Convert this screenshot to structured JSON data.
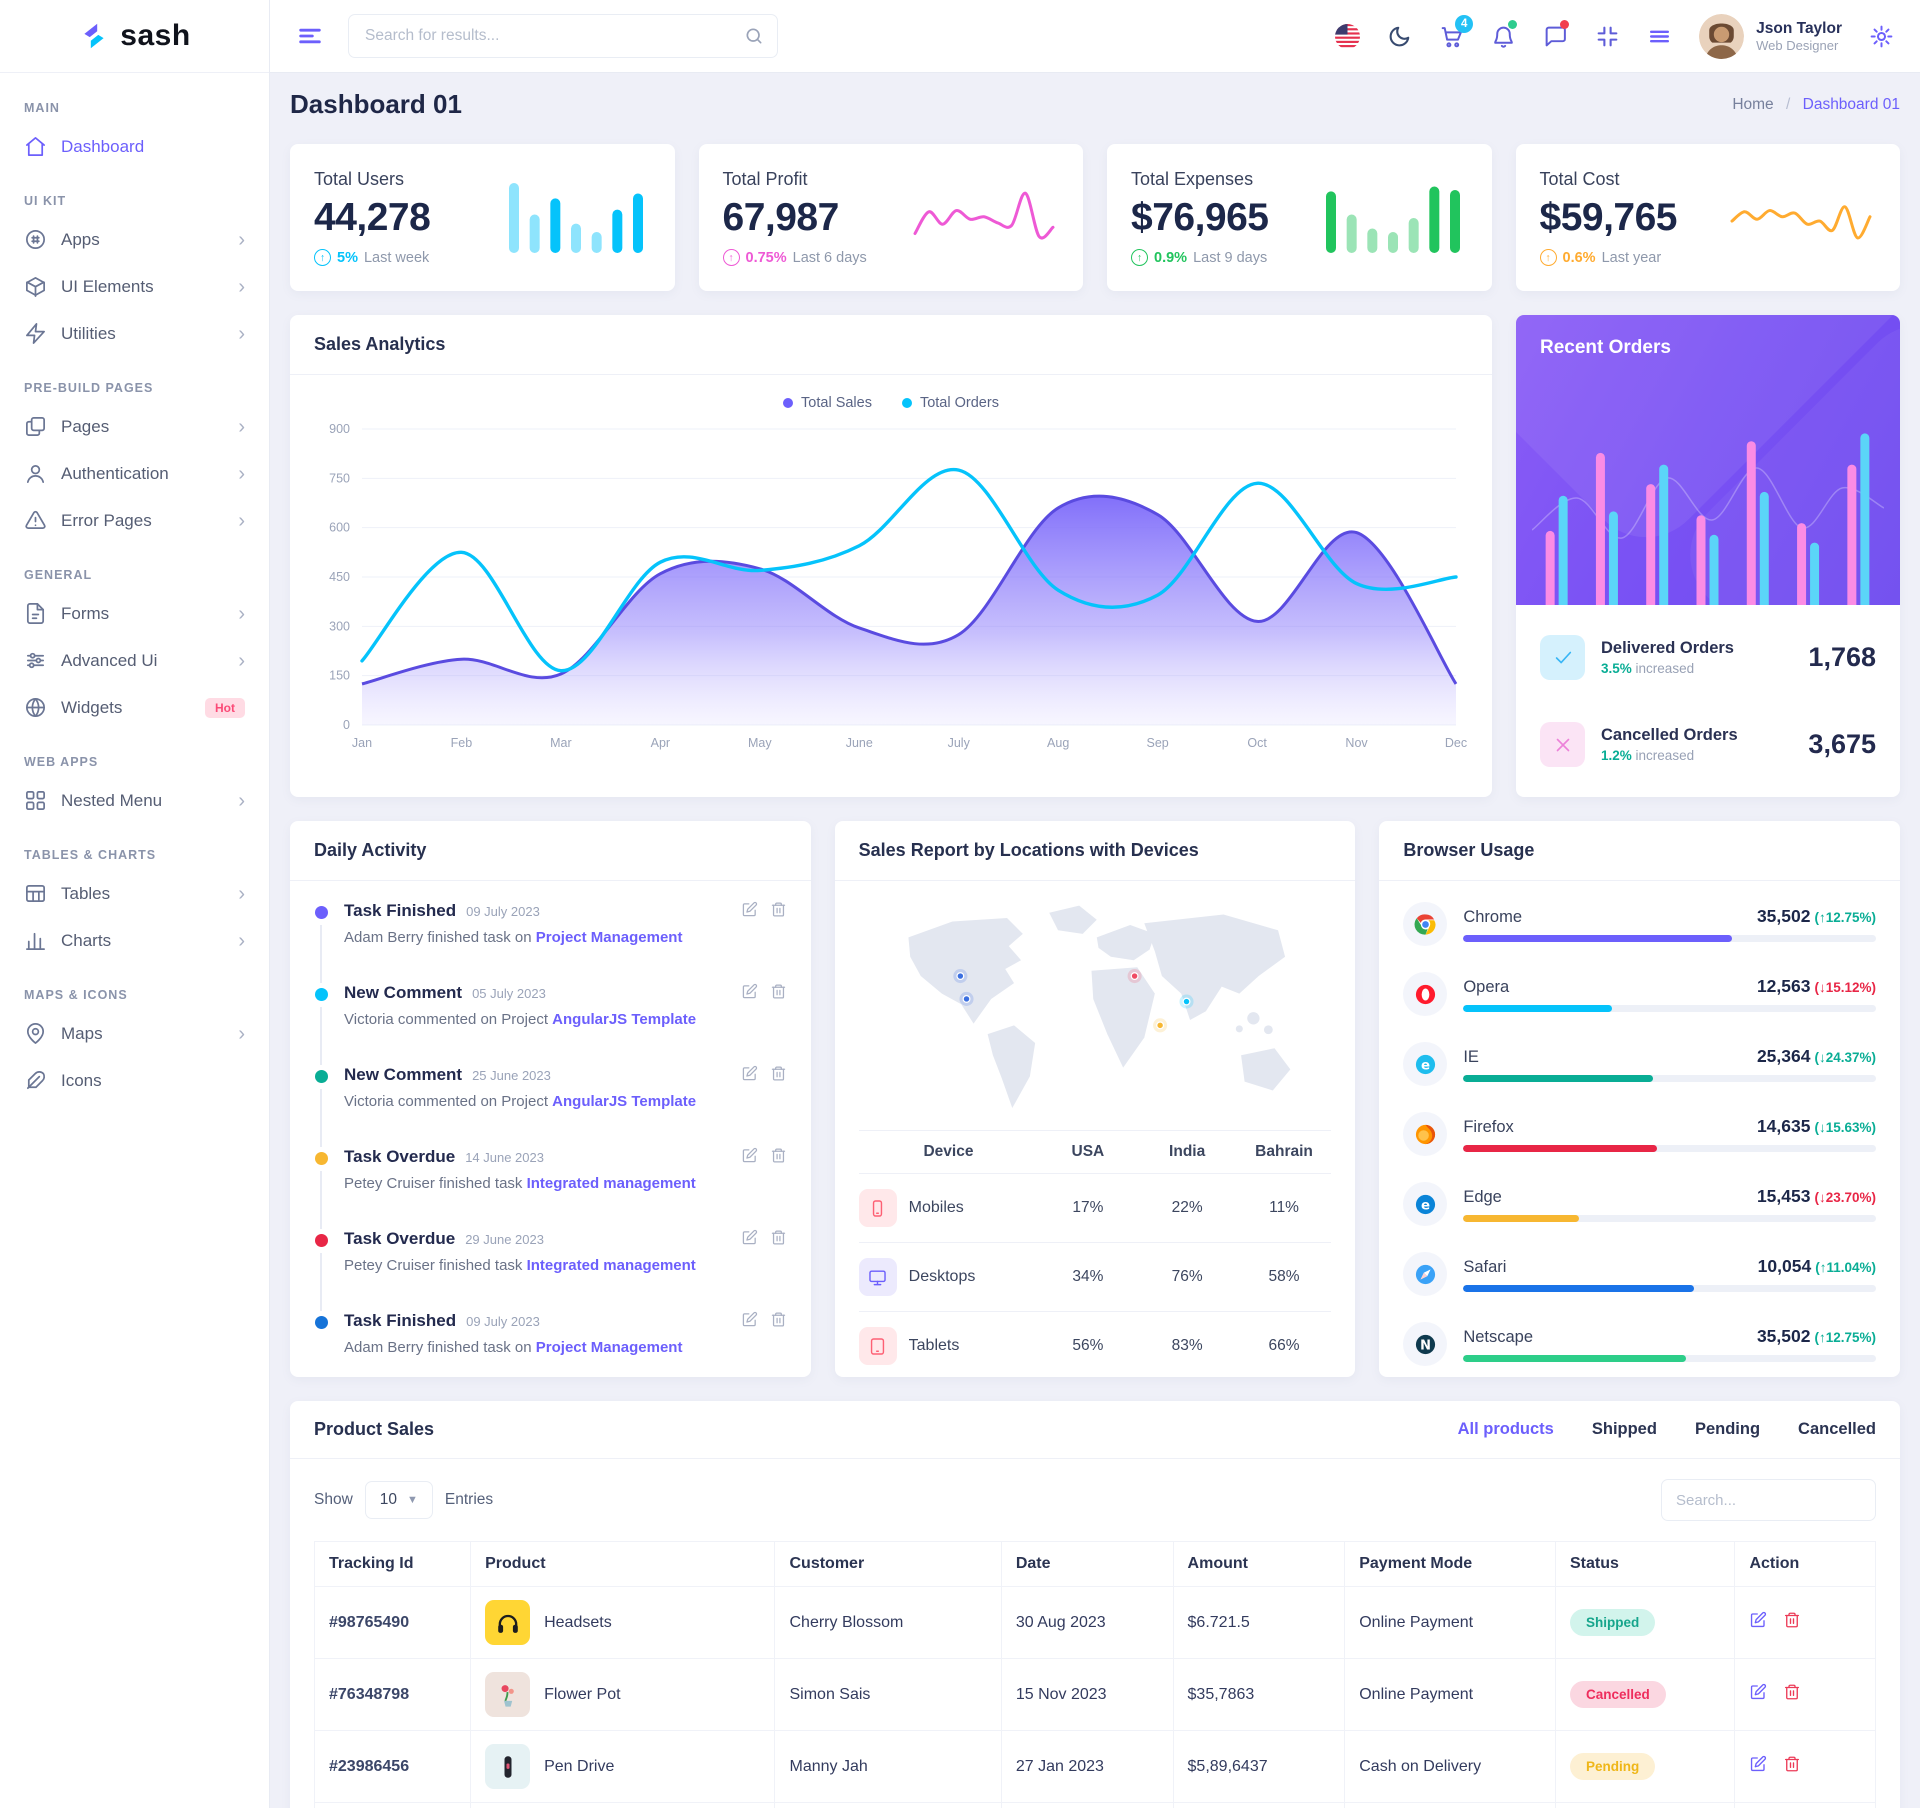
{
  "brand": {
    "name": "sash"
  },
  "header": {
    "search_placeholder": "Search for results...",
    "cart_badge": "4",
    "user": {
      "name": "Json Taylor",
      "role": "Web Designer"
    }
  },
  "sidebar": {
    "sections": [
      {
        "heading": "MAIN",
        "items": [
          {
            "label": "Dashboard",
            "icon": "home",
            "active": true
          }
        ]
      },
      {
        "heading": "UI KIT",
        "items": [
          {
            "label": "Apps",
            "icon": "apps",
            "chevron": true
          },
          {
            "label": "UI Elements",
            "icon": "box",
            "chevron": true
          },
          {
            "label": "Utilities",
            "icon": "zap",
            "chevron": true
          }
        ]
      },
      {
        "heading": "PRE-BUILD PAGES",
        "items": [
          {
            "label": "Pages",
            "icon": "pages",
            "chevron": true
          },
          {
            "label": "Authentication",
            "icon": "user",
            "chevron": true
          },
          {
            "label": "Error Pages",
            "icon": "alert",
            "chevron": true
          }
        ]
      },
      {
        "heading": "GENERAL",
        "items": [
          {
            "label": "Forms",
            "icon": "form",
            "chevron": true
          },
          {
            "label": "Advanced Ui",
            "icon": "sliders",
            "chevron": true
          },
          {
            "label": "Widgets",
            "icon": "globe",
            "badge": "Hot"
          }
        ]
      },
      {
        "heading": "WEB APPS",
        "items": [
          {
            "label": "Nested Menu",
            "icon": "grid",
            "chevron": true
          }
        ]
      },
      {
        "heading": "TABLES & CHARTS",
        "items": [
          {
            "label": "Tables",
            "icon": "table",
            "chevron": true
          },
          {
            "label": "Charts",
            "icon": "chart",
            "chevron": true
          }
        ]
      },
      {
        "heading": "MAPS & ICONS",
        "items": [
          {
            "label": "Maps",
            "icon": "map-pin",
            "chevron": true
          },
          {
            "label": "Icons",
            "icon": "feather"
          }
        ]
      }
    ]
  },
  "page": {
    "title": "Dashboard 01",
    "breadcrumb": [
      "Home",
      "Dashboard 01"
    ],
    "separator": "/"
  },
  "stats": [
    {
      "label": "Total Users",
      "value": "44,278",
      "delta": "5%",
      "period": "Last week",
      "color": "#05c3fb",
      "spark": {
        "type": "bar",
        "values": [
          100,
          55,
          78,
          42,
          30,
          62,
          85
        ],
        "emphasis": [
          0,
          0,
          1,
          0,
          0,
          1,
          1
        ]
      }
    },
    {
      "label": "Total Profit",
      "value": "67,987",
      "delta": "0.75%",
      "period": "Last 6 days",
      "color": "#ee59d5",
      "spark": {
        "type": "line",
        "values": [
          25,
          60,
          40,
          62,
          48,
          52,
          42,
          38,
          90,
          20,
          35
        ]
      }
    },
    {
      "label": "Total Expenses",
      "value": "$76,965",
      "delta": "0.9%",
      "period": "Last 9 days",
      "color": "#21c45d",
      "spark": {
        "type": "bar",
        "values": [
          88,
          55,
          35,
          30,
          50,
          95,
          90
        ],
        "emphasis": [
          1,
          0,
          0,
          0,
          0,
          1,
          1
        ]
      }
    },
    {
      "label": "Total Cost",
      "value": "$59,765",
      "delta": "0.6%",
      "period": "Last year",
      "color": "#ffab30",
      "spark": {
        "type": "line",
        "values": [
          45,
          60,
          48,
          62,
          52,
          58,
          40,
          45,
          30,
          68,
          18,
          52
        ]
      }
    }
  ],
  "chart_data": [
    {
      "id": "sales-analytics",
      "type": "area",
      "title": "Sales Analytics",
      "x": [
        "Jan",
        "Feb",
        "Mar",
        "Apr",
        "May",
        "June",
        "July",
        "Aug",
        "Sep",
        "Oct",
        "Nov",
        "Dec"
      ],
      "series": [
        {
          "name": "Total Sales",
          "type": "area",
          "color": "#6c5ffc",
          "values": [
            125,
            200,
            155,
            460,
            475,
            295,
            275,
            660,
            640,
            315,
            585,
            125
          ]
        },
        {
          "name": "Total Orders",
          "type": "line",
          "color": "#05c3fb",
          "values": [
            195,
            525,
            165,
            495,
            470,
            545,
            775,
            410,
            395,
            735,
            430,
            450
          ]
        }
      ],
      "ylim": [
        0,
        900
      ],
      "yticks": [
        0,
        150,
        300,
        450,
        600,
        750,
        900
      ],
      "grid": true,
      "legend_position": "top"
    },
    {
      "id": "recent-orders-bars",
      "type": "bar",
      "series": [
        {
          "name": "pink",
          "color": "#fb8ce4",
          "values": [
            38,
            78,
            62,
            46,
            84,
            42,
            72
          ]
        },
        {
          "name": "cyan",
          "color": "#5bd5f8",
          "values": [
            56,
            48,
            72,
            36,
            58,
            32,
            88
          ]
        }
      ]
    }
  ],
  "recent_orders": {
    "title": "Recent Orders",
    "items": [
      {
        "label": "Delivered Orders",
        "delta": "3.5%",
        "suffix": "increased",
        "value": "1,768",
        "icon": "check",
        "icon_bg": "#d5f1fd",
        "icon_color": "#38b6f6"
      },
      {
        "label": "Cancelled Orders",
        "delta": "1.2%",
        "suffix": "increased",
        "value": "3,675",
        "icon": "x",
        "icon_bg": "#fbe4f5",
        "icon_color": "#ec82d9"
      }
    ]
  },
  "daily_activity": {
    "title": "Daily Activity",
    "items": [
      {
        "title": "Task Finished",
        "date": "09 July 2023",
        "text": "Adam Berry finished task on",
        "link": "Project Management",
        "dot": "#6c5ffc"
      },
      {
        "title": "New Comment",
        "date": "05 July 2023",
        "text": "Victoria commented on Project",
        "link": "AngularJS Template",
        "dot": "#05c3fb"
      },
      {
        "title": "New Comment",
        "date": "25 June 2023",
        "text": "Victoria commented on Project",
        "link": "AngularJS Template",
        "dot": "#09ad95"
      },
      {
        "title": "Task Overdue",
        "date": "14 June 2023",
        "text": "Petey Cruiser finished task",
        "link": "Integrated management",
        "dot": "#f7b731"
      },
      {
        "title": "Task Overdue",
        "date": "29 June 2023",
        "text": "Petey Cruiser finished task",
        "link": "Integrated management",
        "dot": "#e82646"
      },
      {
        "title": "Task Finished",
        "date": "09 July 2023",
        "text": "Adam Berry finished task on",
        "link": "Project Management",
        "dot": "#1673d8"
      }
    ]
  },
  "sales_report": {
    "title": "Sales Report by Locations with Devices",
    "columns": [
      "Device",
      "USA",
      "India",
      "Bahrain"
    ],
    "rows": [
      {
        "device": "Mobiles",
        "usa": "17%",
        "india": "22%",
        "bahrain": "11%",
        "icon": "phone",
        "icon_color": "#fd6074",
        "icon_bg": "#ffe8ea"
      },
      {
        "device": "Desktops",
        "usa": "34%",
        "india": "76%",
        "bahrain": "58%",
        "icon": "monitor",
        "icon_color": "#6c5ffc",
        "icon_bg": "#eceafd"
      },
      {
        "device": "Tablets",
        "usa": "56%",
        "india": "83%",
        "bahrain": "66%",
        "icon": "tablet",
        "icon_color": "#fd6074",
        "icon_bg": "#ffe8ea"
      }
    ],
    "map_markers": [
      {
        "x": 97,
        "y": 92,
        "color": "#3b6fe0"
      },
      {
        "x": 104,
        "y": 118,
        "color": "#3b6fe0"
      },
      {
        "x": 295,
        "y": 92,
        "color": "#ef4b63"
      },
      {
        "x": 354,
        "y": 121,
        "color": "#05c3fb"
      },
      {
        "x": 324,
        "y": 148,
        "color": "#f7b731"
      }
    ]
  },
  "browser_usage": {
    "title": "Browser Usage",
    "rows": [
      {
        "name": "Chrome",
        "icon": "chrome",
        "value": "35,502",
        "delta": "(↑12.75%)",
        "delta_color": "#09ad95",
        "bar_color": "#6c5ffc",
        "bar_w": "65%"
      },
      {
        "name": "Opera",
        "icon": "opera",
        "value": "12,563",
        "delta": "(↓15.12%)",
        "delta_color": "#e82646",
        "bar_color": "#05c3fb",
        "bar_w": "36%"
      },
      {
        "name": "IE",
        "icon": "ie",
        "value": "25,364",
        "delta": "(↓24.37%)",
        "delta_color": "#09ad95",
        "bar_color": "#09ad95",
        "bar_w": "46%"
      },
      {
        "name": "Firefox",
        "icon": "firefox",
        "value": "14,635",
        "delta": "(↓15.63%)",
        "delta_color": "#09ad95",
        "bar_color": "#e82646",
        "bar_w": "47%"
      },
      {
        "name": "Edge",
        "icon": "edge",
        "value": "15,453",
        "delta": "(↓23.70%)",
        "delta_color": "#e82646",
        "bar_color": "#f7b731",
        "bar_w": "28%"
      },
      {
        "name": "Safari",
        "icon": "safari",
        "value": "10,054",
        "delta": "(↑11.04%)",
        "delta_color": "#09ad95",
        "bar_color": "#1a73e8",
        "bar_w": "56%"
      },
      {
        "name": "Netscape",
        "icon": "netscape",
        "value": "35,502",
        "delta": "(↑12.75%)",
        "delta_color": "#09ad95",
        "bar_color": "#2dce89",
        "bar_w": "54%"
      }
    ]
  },
  "product_sales": {
    "title": "Product Sales",
    "tabs": [
      {
        "label": "All products",
        "active": true
      },
      {
        "label": "Shipped"
      },
      {
        "label": "Pending"
      },
      {
        "label": "Cancelled"
      }
    ],
    "show_label": "Show",
    "page_size": "10",
    "entries_label": "Entries",
    "search_placeholder": "Search...",
    "columns": [
      "Tracking Id",
      "Product",
      "Customer",
      "Date",
      "Amount",
      "Payment Mode",
      "Status",
      "Action"
    ],
    "rows": [
      {
        "tracking": "#98765490",
        "product": "Headsets",
        "img": "headsets",
        "img_bg": "#ffd634",
        "customer": "Cherry Blossom",
        "date": "30 Aug 2023",
        "amount": "$6.721.5",
        "payment": "Online Payment",
        "status": "Shipped",
        "status_bg": "#d2f4ec",
        "status_color": "#16a58c"
      },
      {
        "tracking": "#76348798",
        "product": "Flower Pot",
        "img": "flower-pot",
        "img_bg": "#efe3dd",
        "customer": "Simon Sais",
        "date": "15 Nov 2023",
        "amount": "$35,7863",
        "payment": "Online Payment",
        "status": "Cancelled",
        "status_bg": "#fbd7e1",
        "status_color": "#ee2d5d"
      },
      {
        "tracking": "#23986456",
        "product": "Pen Drive",
        "img": "pen-drive",
        "img_bg": "#e6f2f4",
        "customer": "Manny Jah",
        "date": "27 Jan 2023",
        "amount": "$5,89,6437",
        "payment": "Cash on Delivery",
        "status": "Pending",
        "status_bg": "#fdf0d3",
        "status_color": "#efb618"
      },
      {
        "tracking": "",
        "product": "",
        "img": "product-blue",
        "img_bg": "#9ed4f3",
        "customer": "",
        "date": "",
        "amount": "",
        "payment": "",
        "status": ""
      }
    ]
  }
}
